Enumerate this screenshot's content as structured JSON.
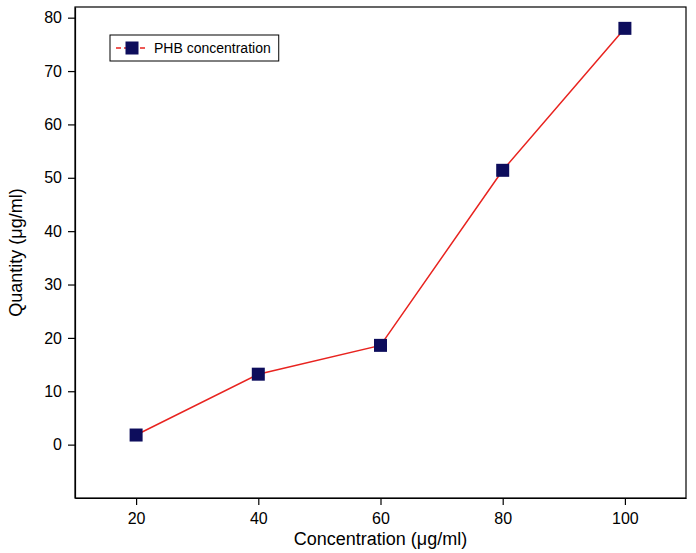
{
  "chart_data": {
    "type": "line",
    "x_label": "Concentration (μg/ml)",
    "y_label": "Quantity (μg/ml)",
    "x": [
      20,
      40,
      60,
      80,
      100
    ],
    "series": [
      {
        "name": "PHB concentration",
        "color": "#e8231f",
        "marker": "square",
        "line_style": "solid",
        "values": [
          1.8,
          13.2,
          18.6,
          51.4,
          78.0
        ]
      }
    ],
    "xlim": [
      10,
      110
    ],
    "xticks": [
      20,
      40,
      60,
      80,
      100
    ],
    "ylim": [
      -10,
      82
    ],
    "yticks": [
      0,
      10,
      20,
      30,
      40,
      50,
      60,
      70,
      80
    ],
    "grid": false,
    "legend": "upper left"
  }
}
